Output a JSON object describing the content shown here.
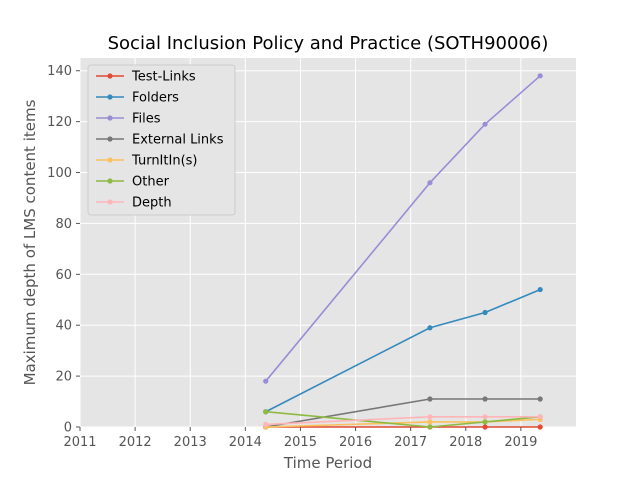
{
  "chart_data": {
    "type": "line",
    "title": "Social Inclusion Policy and Practice (SOTH90006)",
    "xlabel": "Time Period",
    "ylabel": "Maximum depth of LMS content items",
    "xlim": [
      2011,
      2020
    ],
    "ylim": [
      0,
      145
    ],
    "x_ticks": [
      "2011",
      "2012",
      "2013",
      "2014",
      "2015",
      "2016",
      "2017",
      "2018",
      "2019"
    ],
    "y_ticks": [
      "0",
      "20",
      "40",
      "60",
      "80",
      "100",
      "120",
      "140"
    ],
    "grid": true,
    "legend_position": "upper-left",
    "x": [
      2014.37,
      2017.35,
      2018.35,
      2019.35
    ],
    "series": [
      {
        "name": "Test-Links",
        "color": "#e24a33",
        "values": [
          0,
          0,
          0,
          0
        ]
      },
      {
        "name": "Folders",
        "color": "#348abd",
        "values": [
          6,
          39,
          45,
          54
        ]
      },
      {
        "name": "Files",
        "color": "#988ed5",
        "values": [
          18,
          96,
          119,
          138
        ]
      },
      {
        "name": "External Links",
        "color": "#777777",
        "values": [
          0,
          11,
          11,
          11
        ]
      },
      {
        "name": "TurnItIn(s)",
        "color": "#fbc15e",
        "values": [
          0,
          2,
          2,
          3
        ]
      },
      {
        "name": "Other",
        "color": "#8eba42",
        "values": [
          6,
          0,
          2,
          4
        ]
      },
      {
        "name": "Depth",
        "color": "#ffb5b8",
        "values": [
          1,
          4,
          4,
          4
        ]
      }
    ]
  }
}
